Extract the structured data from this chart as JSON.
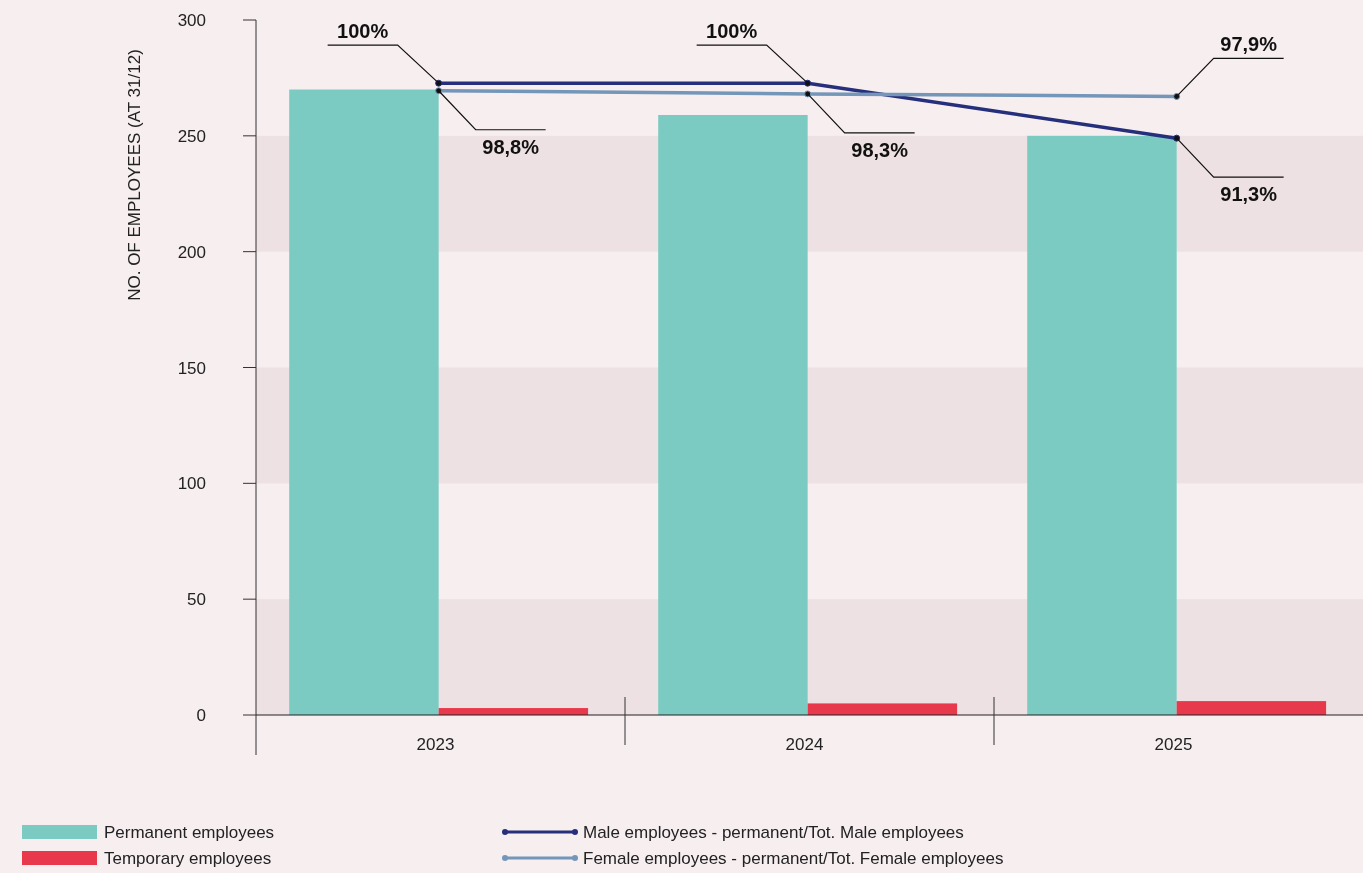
{
  "chart_data": {
    "type": "bar",
    "ylabel": "NO. OF EMPLOYEES (AT 31/12)",
    "categories": [
      "2023",
      "2024",
      "2025"
    ],
    "series": [
      {
        "name": "Permanent employees",
        "color": "#7bcbc3",
        "values": [
          270,
          259,
          250
        ]
      },
      {
        "name": "Temporary employees",
        "color": "#e8384b",
        "values": [
          3,
          5,
          6
        ]
      },
      {
        "name": "Male employees - permanent/Tot. Male employees",
        "type": "line",
        "axis": "y2",
        "color": "#262f7b",
        "values": [
          100,
          100,
          91.3
        ],
        "value_labels": [
          "100%",
          "100%",
          "91,3%"
        ]
      },
      {
        "name": "Female employees - permanent/Tot. Female employees",
        "type": "line",
        "axis": "y2",
        "color": "#7396b9",
        "values": [
          98.8,
          98.3,
          97.9
        ],
        "value_labels": [
          "98,8%",
          "98,3%",
          "97,9%"
        ]
      }
    ],
    "ylim": [
      0,
      300
    ],
    "yticks": [
      0,
      50,
      100,
      150,
      200,
      250,
      300
    ],
    "y2lim": [
      0,
      110
    ],
    "bands": [
      {
        "axis": "y",
        "from": 0,
        "to": 50,
        "color": "#ede1e3"
      },
      {
        "axis": "y",
        "from": 100,
        "to": 150,
        "color": "#ede1e3"
      },
      {
        "axis": "y",
        "from": 200,
        "to": 250,
        "color": "#ede1e3"
      }
    ],
    "legend": "bottom",
    "marker": "circle",
    "line_style": "solid",
    "grid": false
  }
}
